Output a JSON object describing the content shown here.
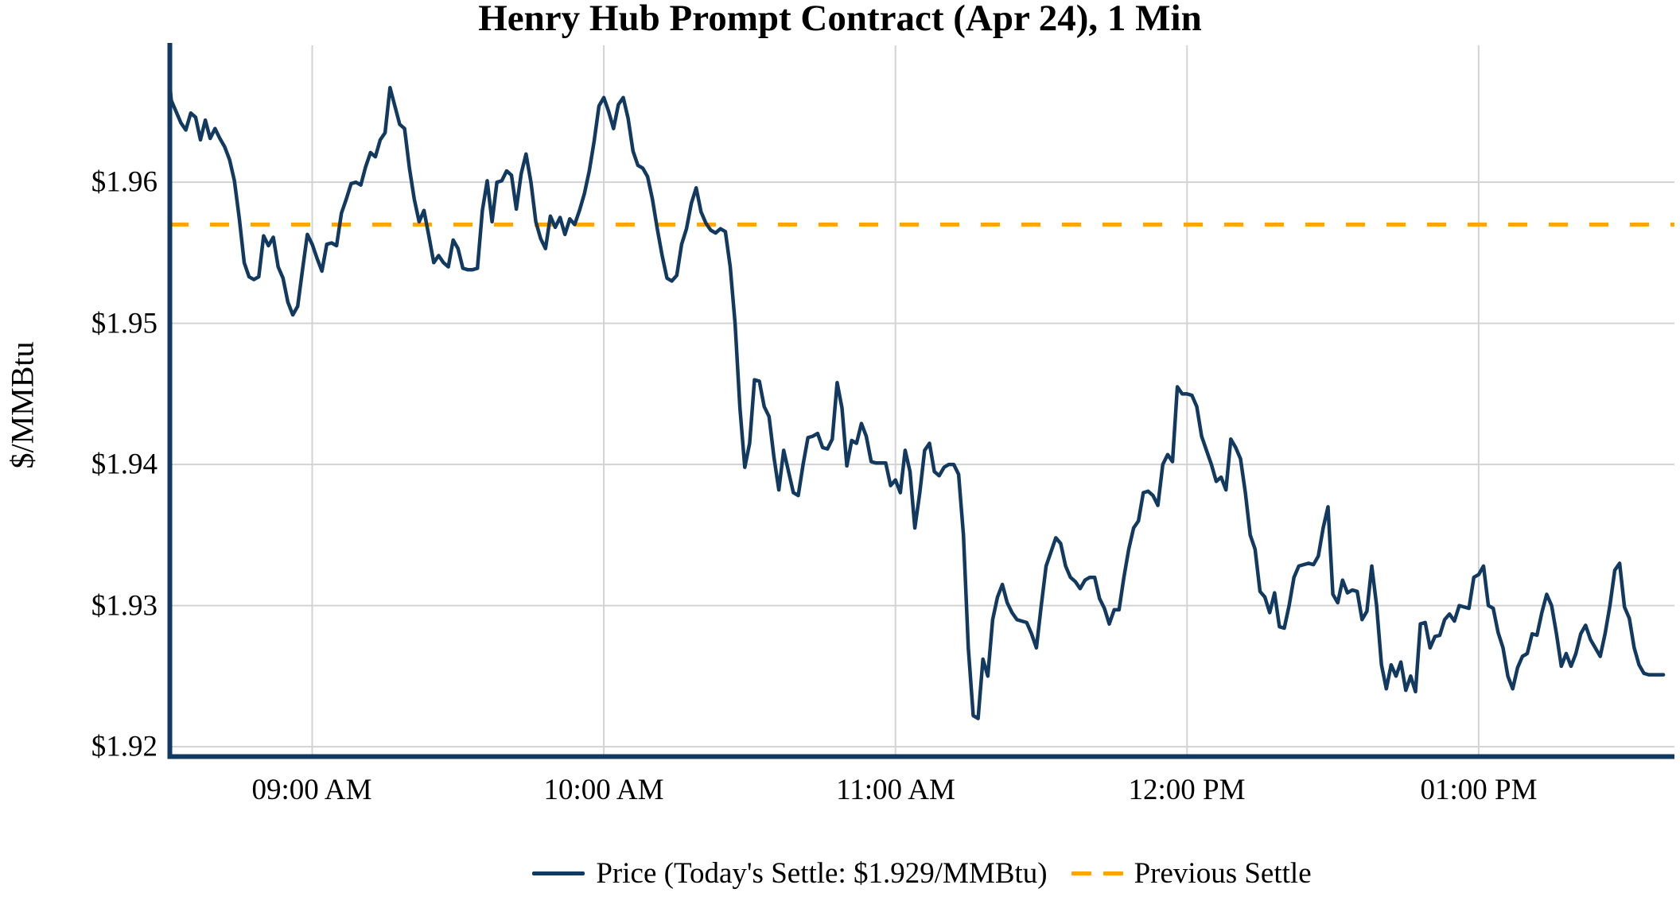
{
  "title": "Henry Hub Prompt Contract (Apr 24), 1 Min",
  "y_axis": {
    "label": "$/MMBtu",
    "ticks": [
      "$1.96",
      "$1.95",
      "$1.94",
      "$1.93",
      "$1.92"
    ],
    "tick_values": [
      1.96,
      1.95,
      1.94,
      1.93,
      1.92
    ],
    "range": [
      1.9193,
      1.9697
    ]
  },
  "x_axis": {
    "ticks": [
      "09:00 AM",
      "10:00 AM",
      "11:00 AM",
      "12:00 PM",
      "01:00 PM"
    ],
    "tick_minutes_after_9am": [
      0,
      60,
      120,
      180,
      240
    ]
  },
  "legend": {
    "price_label": "Price (Today's Settle: $1.929/MMBtu)",
    "previous_settle_label": "Previous Settle"
  },
  "colors": {
    "price_line": "#12395f",
    "previous_settle": "#ffa500",
    "grid": "#d3d3d3",
    "spine": "#12395f",
    "text": "#000000"
  },
  "chart_data": {
    "type": "line",
    "title": "Henry Hub Prompt Contract (Apr 24), 1 Min",
    "xlabel": "",
    "ylabel": "$/MMBtu",
    "ylim": [
      1.9193,
      1.9697
    ],
    "grid": true,
    "legend_position": "bottom-center",
    "previous_settle": 1.957,
    "todays_settle": 1.929,
    "start_time": "08:30 AM",
    "end_time": "01:38 PM",
    "interval_minutes": 1,
    "x_tick_labels": [
      "09:00 AM",
      "10:00 AM",
      "11:00 AM",
      "12:00 PM",
      "01:00 PM"
    ],
    "series_name": "Price",
    "values": [
      1.9697,
      1.9658,
      1.965,
      1.9642,
      1.9637,
      1.9649,
      1.9646,
      1.963,
      1.9644,
      1.9631,
      1.9638,
      1.9631,
      1.9625,
      1.9616,
      1.9601,
      1.9574,
      1.9543,
      1.9533,
      1.9531,
      1.9533,
      1.9562,
      1.9555,
      1.9561,
      1.954,
      1.9532,
      1.9515,
      1.9506,
      1.9512,
      1.9538,
      1.9563,
      1.9556,
      1.9546,
      1.9537,
      1.9556,
      1.9557,
      1.9555,
      1.9578,
      1.9588,
      1.9599,
      1.96,
      1.9598,
      1.9611,
      1.9621,
      1.9618,
      1.963,
      1.9635,
      1.9667,
      1.9654,
      1.9641,
      1.9638,
      1.961,
      1.9588,
      1.9572,
      1.958,
      1.9562,
      1.9543,
      1.9548,
      1.9543,
      1.954,
      1.9559,
      1.9553,
      1.9539,
      1.9538,
      1.9538,
      1.9539,
      1.958,
      1.9601,
      1.9572,
      1.96,
      1.9601,
      1.9608,
      1.9605,
      1.9581,
      1.9606,
      1.962,
      1.96,
      1.9572,
      1.956,
      1.9553,
      1.9576,
      1.9568,
      1.9575,
      1.9563,
      1.9574,
      1.957,
      1.958,
      1.9592,
      1.9608,
      1.9629,
      1.9654,
      1.966,
      1.965,
      1.9638,
      1.9655,
      1.966,
      1.9645,
      1.9622,
      1.9612,
      1.961,
      1.9604,
      1.9588,
      1.9567,
      1.9548,
      1.9532,
      1.953,
      1.9534,
      1.9556,
      1.9567,
      1.9585,
      1.9596,
      1.9579,
      1.9571,
      1.9566,
      1.9564,
      1.9567,
      1.9565,
      1.954,
      1.95,
      1.944,
      1.9398,
      1.9415,
      1.946,
      1.9459,
      1.9441,
      1.9434,
      1.9405,
      1.9382,
      1.941,
      1.9395,
      1.938,
      1.9378,
      1.94,
      1.9419,
      1.942,
      1.9422,
      1.9412,
      1.9411,
      1.9418,
      1.9458,
      1.944,
      1.9399,
      1.9417,
      1.9415,
      1.9429,
      1.942,
      1.9402,
      1.9401,
      1.9401,
      1.9401,
      1.9385,
      1.9389,
      1.938,
      1.941,
      1.9395,
      1.9355,
      1.938,
      1.941,
      1.9415,
      1.9395,
      1.9392,
      1.9398,
      1.94,
      1.94,
      1.9393,
      1.935,
      1.927,
      1.9222,
      1.922,
      1.9262,
      1.925,
      1.929,
      1.9306,
      1.9315,
      1.9302,
      1.9295,
      1.929,
      1.9289,
      1.9288,
      1.928,
      1.927,
      1.93,
      1.9328,
      1.9338,
      1.9348,
      1.9344,
      1.9328,
      1.932,
      1.9317,
      1.9312,
      1.9318,
      1.932,
      1.932,
      1.9305,
      1.9298,
      1.9287,
      1.9297,
      1.9297,
      1.932,
      1.934,
      1.9355,
      1.936,
      1.938,
      1.9381,
      1.9378,
      1.9371,
      1.94,
      1.9407,
      1.9402,
      1.9455,
      1.945,
      1.945,
      1.9449,
      1.9441,
      1.942,
      1.941,
      1.94,
      1.9388,
      1.9391,
      1.9382,
      1.9418,
      1.9412,
      1.9404,
      1.938,
      1.935,
      1.934,
      1.931,
      1.9306,
      1.9295,
      1.9309,
      1.9285,
      1.9284,
      1.93,
      1.932,
      1.9328,
      1.9329,
      1.933,
      1.9329,
      1.9335,
      1.9355,
      1.937,
      1.9308,
      1.9302,
      1.9318,
      1.9309,
      1.9311,
      1.931,
      1.929,
      1.9296,
      1.9328,
      1.93,
      1.9258,
      1.9241,
      1.9258,
      1.925,
      1.926,
      1.924,
      1.925,
      1.9239,
      1.9287,
      1.9288,
      1.927,
      1.9278,
      1.9279,
      1.929,
      1.9294,
      1.9289,
      1.93,
      1.9299,
      1.9298,
      1.932,
      1.9322,
      1.9328,
      1.93,
      1.9298,
      1.9281,
      1.927,
      1.925,
      1.9241,
      1.9256,
      1.9264,
      1.9266,
      1.928,
      1.9279,
      1.9295,
      1.9308,
      1.93,
      1.928,
      1.9257,
      1.9266,
      1.9257,
      1.9266,
      1.928,
      1.9286,
      1.9276,
      1.927,
      1.9264,
      1.928,
      1.93,
      1.9325,
      1.933,
      1.9299,
      1.9291,
      1.927,
      1.9258,
      1.9252,
      1.9251,
      1.9251,
      1.9251,
      1.9251
    ]
  }
}
